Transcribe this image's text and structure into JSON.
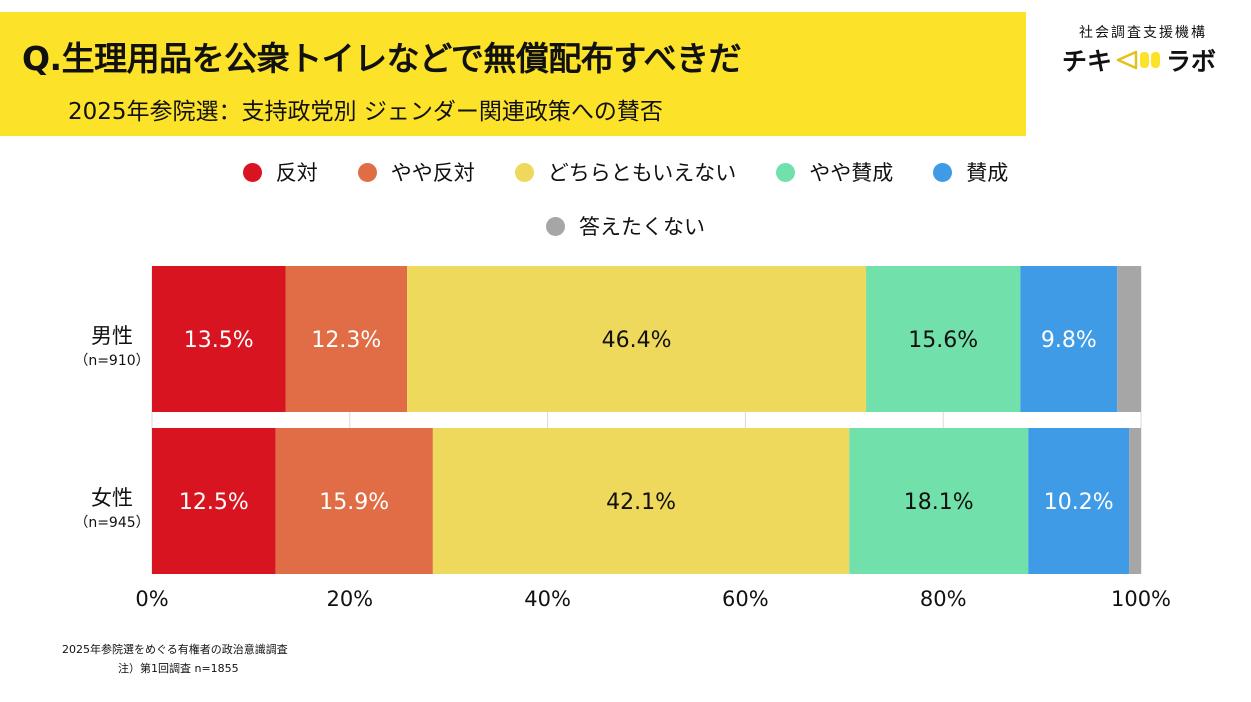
{
  "header": {
    "title": "Q.生理用品を公衆トイレなどで無償配布すべきだ",
    "subtitle": "2025年参院選：支持政党別 ジェンダー関連政策への賛否"
  },
  "brand": {
    "org": "社会調査支援機構",
    "logo_left": "チキ",
    "logo_right": "ラボ",
    "logo_icon": "megaphone-icon"
  },
  "footer": {
    "source": "2025年参院選をめぐる有権者の政治意識調査",
    "note": "注）第1回調査 n=1855"
  },
  "chart_data": {
    "type": "bar",
    "orientation": "horizontal",
    "stacked": true,
    "percent": true,
    "categories": [
      "男性",
      "女性"
    ],
    "category_notes": [
      "（n=910）",
      "（n=945）"
    ],
    "series": [
      {
        "name": "反対",
        "color": "#d7141f",
        "values": [
          13.5,
          12.5
        ],
        "labels": [
          "13.5%",
          "12.5%"
        ]
      },
      {
        "name": "やや反対",
        "color": "#e06d45",
        "values": [
          12.3,
          15.9
        ],
        "labels": [
          "12.3%",
          "15.9%"
        ]
      },
      {
        "name": "どちらともいえない",
        "color": "#efd95c",
        "values": [
          46.4,
          42.1
        ],
        "labels": [
          "46.4%",
          "42.1%"
        ]
      },
      {
        "name": "やや賛成",
        "color": "#72e0aa",
        "values": [
          15.6,
          18.1
        ],
        "labels": [
          "15.6%",
          "18.1%"
        ]
      },
      {
        "name": "賛成",
        "color": "#3f9be6",
        "values": [
          9.8,
          10.2
        ],
        "labels": [
          "9.8%",
          "10.2%"
        ]
      },
      {
        "name": "答えたくない",
        "color": "#a6a6a6",
        "values": [
          2.4,
          1.2
        ],
        "labels": [
          "",
          ""
        ]
      }
    ],
    "xlim": [
      0,
      100
    ],
    "xticks": [
      "0%",
      "20%",
      "40%",
      "60%",
      "80%",
      "100%"
    ],
    "grid": true,
    "legend_position": "top"
  }
}
